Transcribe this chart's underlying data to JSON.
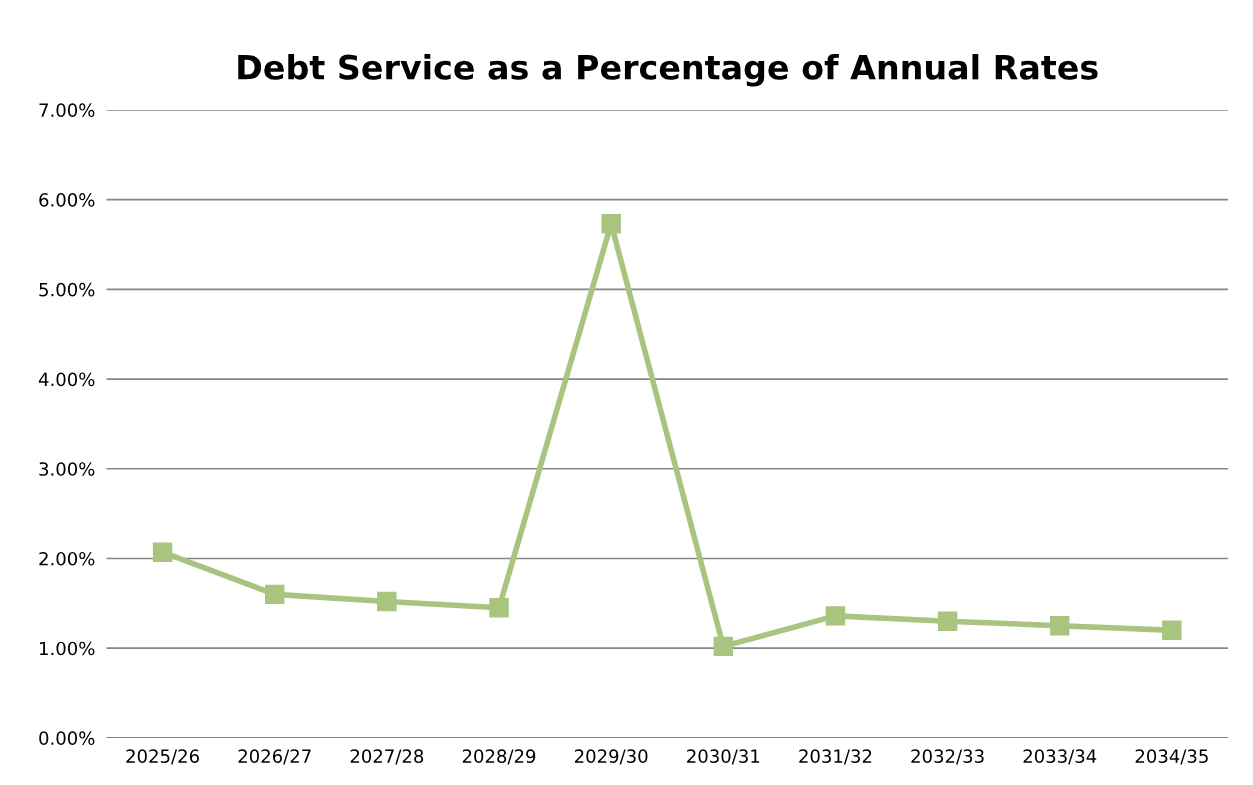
{
  "chart_data": {
    "type": "line",
    "title": "Debt Service as a Percentage of Annual Rates",
    "categories": [
      "2025/26",
      "2026/27",
      "2027/28",
      "2028/29",
      "2029/30",
      "2030/31",
      "2031/32",
      "2032/33",
      "2033/34",
      "2034/35"
    ],
    "series": [
      {
        "color": "#a9c47f",
        "values": [
          2.07,
          1.6,
          1.52,
          1.45,
          5.73,
          1.02,
          1.36,
          1.3,
          1.25,
          1.2
        ]
      }
    ],
    "ylim": [
      0,
      7
    ],
    "yticks": [
      {
        "value": 0,
        "label": "0.00%"
      },
      {
        "value": 1,
        "label": "1.00%"
      },
      {
        "value": 2,
        "label": "2.00%"
      },
      {
        "value": 3,
        "label": "3.00%"
      },
      {
        "value": 4,
        "label": "4.00%"
      },
      {
        "value": 5,
        "label": "5.00%"
      },
      {
        "value": 6,
        "label": "6.00%"
      },
      {
        "value": 7,
        "label": "7.00%"
      }
    ],
    "grid": "y",
    "marker": "square",
    "line_style": "solid",
    "legend": false
  }
}
